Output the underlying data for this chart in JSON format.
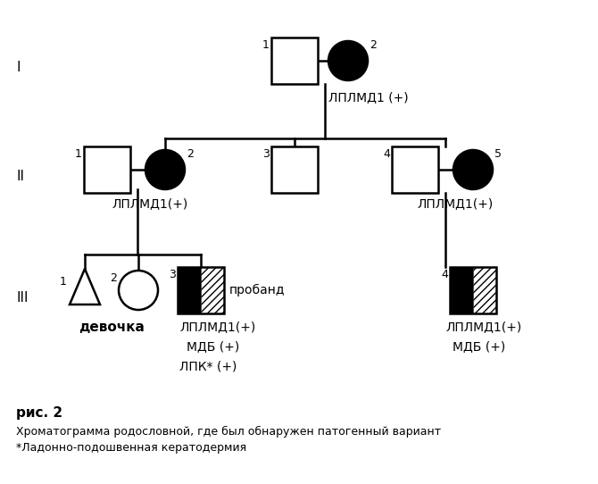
{
  "fig_caption": "рис. 2",
  "caption_line1": "Хроматограмма родословной, где был обнаружен патогенный вариант",
  "caption_line2": "*Ладонно-подошвенная кератодермия",
  "background": "#ffffff",
  "text_color": "#000000",
  "lplmd_label": "ЛПЛМД1(+)",
  "mdb_label": "МДБ (+)",
  "lpk_label": "ЛПК* (+)",
  "proband_label": "пробанд",
  "devochka_label": "девочка",
  "gen_I_label": "I",
  "gen_II_label": "II",
  "gen_III_label": "III",
  "lplmd_I_label": "ЛПЛМД1 (+)",
  "lplmd_II2_label": "ЛПЛМД1(+)",
  "lplmd_II5_label": "ЛПЛМД1(+)"
}
